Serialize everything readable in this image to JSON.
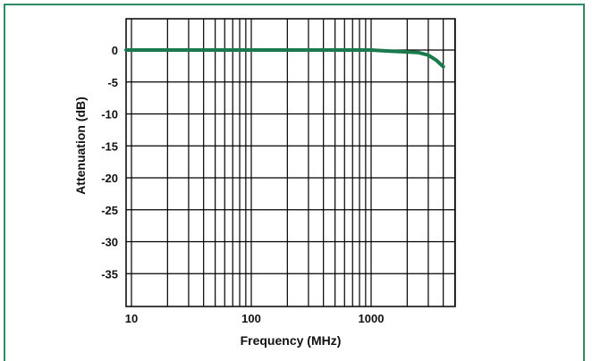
{
  "chart_data": {
    "type": "line",
    "title": "",
    "xlabel": "Frequency (MHz)",
    "ylabel": "Attenuation (dB)",
    "x_scale": "log",
    "xlim": [
      10,
      4000
    ],
    "ylim": [
      -40,
      5
    ],
    "grid": true,
    "x_ticks": [
      {
        "value": 10,
        "label": "10"
      },
      {
        "value": 100,
        "label": "100"
      },
      {
        "value": 1000,
        "label": "1000"
      }
    ],
    "y_ticks": [
      {
        "value": 0,
        "label": "0"
      },
      {
        "value": -5,
        "label": "-5"
      },
      {
        "value": -10,
        "label": "-10"
      },
      {
        "value": -15,
        "label": "-15"
      },
      {
        "value": -20,
        "label": "-20"
      },
      {
        "value": -25,
        "label": "-25"
      },
      {
        "value": -30,
        "label": "-30"
      },
      {
        "value": -35,
        "label": "-35"
      }
    ],
    "series": [
      {
        "color": "#1a7a4c",
        "x": [
          7,
          20,
          100,
          500,
          1000,
          1500,
          2000,
          2500,
          3000,
          3500,
          4000
        ],
        "y": [
          0,
          0,
          0,
          0,
          0,
          -0.2,
          -0.3,
          -0.4,
          -0.8,
          -1.6,
          -2.6
        ]
      }
    ]
  },
  "colors": {
    "frame": "#2e8b63",
    "grid": "#000000",
    "line": "#1a7a4c"
  }
}
